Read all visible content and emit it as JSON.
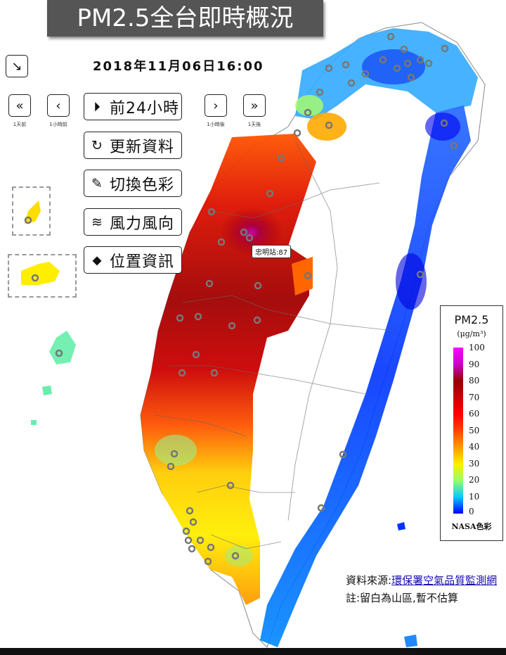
{
  "header": {
    "title": "PM2.5全台即時概況",
    "datetime": "2018年11月06日16:00"
  },
  "nav": {
    "collapse_icon": "collapse-arrow-icon",
    "day_back": {
      "icon": "«",
      "label": "1天前"
    },
    "hour_back": {
      "icon": "‹",
      "label": "1小時前"
    },
    "hour_fwd": {
      "icon": "›",
      "label": "1小時後"
    },
    "day_fwd": {
      "icon": "»",
      "label": "1天後"
    }
  },
  "actions": {
    "play24": {
      "icon": "⏵",
      "label": "前24小時"
    },
    "refresh": {
      "icon": "↻",
      "label": "更新資料"
    },
    "color": {
      "icon": "✎",
      "label": "切換色彩"
    },
    "wind": {
      "icon": "≋",
      "label": "風力風向"
    },
    "location": {
      "icon": "⬥",
      "label": "位置資訊"
    }
  },
  "map": {
    "tooltip": "忠明站:87"
  },
  "legend": {
    "title": "PM2.5",
    "unit": "(μg/m³)",
    "ticks": [
      "100",
      "90",
      "80",
      "70",
      "60",
      "50",
      "40",
      "30",
      "20",
      "10",
      "0"
    ],
    "footer": "NASA色彩"
  },
  "footer": {
    "source_prefix": "資料來源:",
    "source_link": "環保署空氣品質監測網",
    "note": "註:留白為山區,暫不估算"
  },
  "colors": {
    "high": "#990000",
    "mid": "#ff0000",
    "low": "#0000ff",
    "clean": "#00ccff"
  }
}
